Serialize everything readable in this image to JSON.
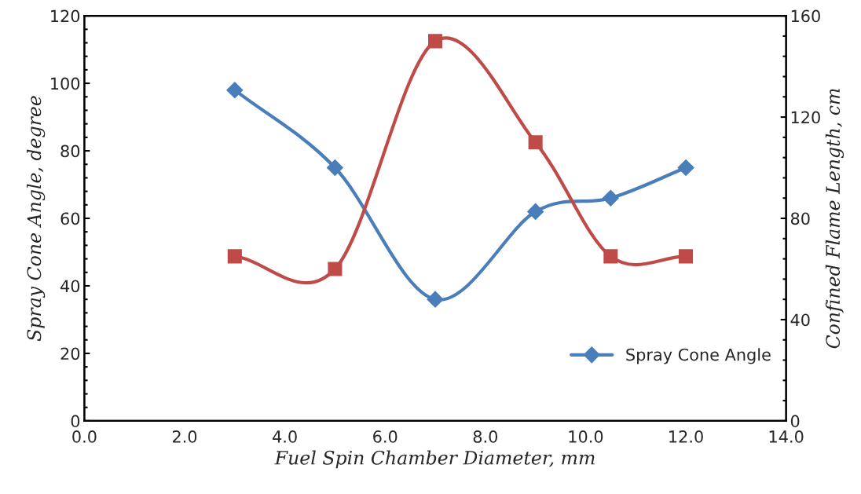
{
  "chart_data": {
    "type": "line",
    "xlabel": "Fuel Spin Chamber Diameter, mm",
    "ylabel": "Spray Cone Angle, degree",
    "y2label": "Confined Flame Length, cm",
    "x": [
      3,
      5,
      7,
      9,
      10.5,
      12
    ],
    "series": [
      {
        "name": "Spray Cone Angle",
        "color": "#4a7ebb",
        "marker": "diamond",
        "values": [
          98,
          75,
          36,
          62,
          66,
          75
        ]
      },
      {
        "color": "#be4b48",
        "marker": "square",
        "axis": "y2",
        "values": [
          65,
          60,
          150,
          110,
          65,
          65
        ]
      }
    ],
    "xlim": [
      0,
      14
    ],
    "xticks": [
      {
        "value": 0,
        "label": "0.0"
      },
      {
        "value": 2,
        "label": "2.0"
      },
      {
        "value": 4,
        "label": "4.0"
      },
      {
        "value": 6,
        "label": "6.0"
      },
      {
        "value": 8,
        "label": "8.0"
      },
      {
        "value": 10,
        "label": "10.0"
      },
      {
        "value": 12,
        "label": "12.0"
      },
      {
        "value": 14,
        "label": "14.0"
      }
    ],
    "ylim": [
      0,
      120
    ],
    "yticks": [
      0,
      20,
      40,
      60,
      80,
      100,
      120
    ],
    "y2lim": [
      0,
      160
    ],
    "y2ticks": [
      0,
      40,
      80,
      120,
      160
    ],
    "legend": "right",
    "grid": false,
    "line_style": "solid"
  }
}
